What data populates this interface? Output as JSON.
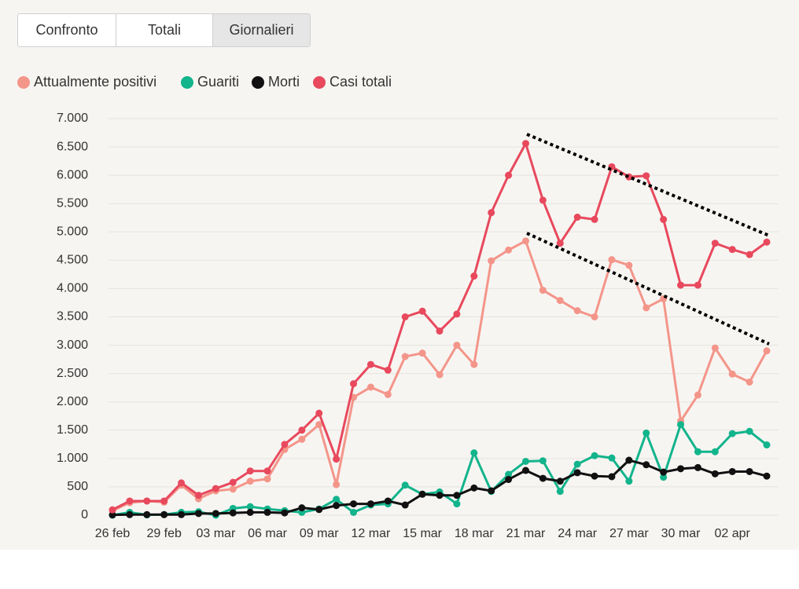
{
  "tabs": [
    "Confronto",
    "Totali",
    "Giornalieri"
  ],
  "chart_data": {
    "type": "line",
    "categories": [
      "26 feb",
      null,
      null,
      "29 feb",
      null,
      null,
      "03 mar",
      null,
      null,
      "06 mar",
      null,
      null,
      "09 mar",
      null,
      null,
      "12 mar",
      null,
      null,
      "15 mar",
      null,
      null,
      "18 mar",
      null,
      null,
      "21 mar",
      null,
      null,
      "24 mar",
      null,
      null,
      "27 mar",
      null,
      null,
      "30 mar",
      null,
      null,
      "02 apr",
      null,
      null
    ],
    "ylim": [
      0,
      7000
    ],
    "yticks": [
      0,
      500,
      {
        "value": 1000,
        "label": "1.000"
      },
      {
        "value": 1500,
        "label": "1.500"
      },
      {
        "value": 2000,
        "label": "2.000"
      },
      {
        "value": 2500,
        "label": "2.500"
      },
      {
        "value": 3000,
        "label": "3.000"
      },
      {
        "value": 3500,
        "label": "3.500"
      },
      {
        "value": 4000,
        "label": "4.000"
      },
      {
        "value": 4500,
        "label": "4.500"
      },
      {
        "value": 5000,
        "label": "5.000"
      },
      {
        "value": 5500,
        "label": "5.500"
      },
      {
        "value": 6000,
        "label": "6.000"
      },
      {
        "value": 6500,
        "label": "6.500"
      },
      {
        "value": 7000,
        "label": "7.000"
      }
    ],
    "grid": true,
    "series": [
      {
        "name": "Attualmente positivi",
        "color": "#f4958a",
        "values": [
          80,
          220,
          250,
          230,
          530,
          290,
          430,
          460,
          600,
          640,
          1160,
          1340,
          1600,
          540,
          2080,
          2260,
          2130,
          2800,
          2860,
          2480,
          3000,
          2660,
          4490,
          4680,
          4840,
          3970,
          3790,
          3610,
          3500,
          4510,
          4410,
          3660,
          3820,
          1660,
          2120,
          2950,
          2490,
          2350,
          2900
        ]
      },
      {
        "name": "Guariti",
        "color": "#12b48c",
        "values": [
          0,
          50,
          5,
          10,
          50,
          60,
          0,
          120,
          150,
          110,
          80,
          50,
          110,
          280,
          50,
          180,
          200,
          530,
          370,
          410,
          200,
          1100,
          420,
          720,
          950,
          960,
          420,
          900,
          1050,
          1010,
          600,
          1450,
          670,
          1600,
          1120,
          1120,
          1440,
          1480,
          1240
        ]
      },
      {
        "name": "Morti",
        "color": "#111111",
        "values": [
          5,
          10,
          10,
          10,
          10,
          30,
          30,
          40,
          50,
          50,
          40,
          130,
          100,
          170,
          200,
          200,
          250,
          180,
          370,
          350,
          350,
          480,
          430,
          630,
          790,
          650,
          600,
          750,
          690,
          680,
          970,
          890,
          760,
          820,
          840,
          730,
          770,
          770,
          690
        ]
      },
      {
        "name": "Casi totali",
        "color": "#e8495d",
        "values": [
          95,
          250,
          250,
          250,
          570,
          350,
          470,
          580,
          780,
          780,
          1250,
          1500,
          1800,
          990,
          2320,
          2660,
          2560,
          3500,
          3600,
          3250,
          3550,
          4220,
          5340,
          6000,
          6560,
          5560,
          4800,
          5260,
          5220,
          6150,
          5970,
          5990,
          5220,
          4060,
          4060,
          4800,
          4690,
          4600,
          4820
        ]
      }
    ]
  }
}
